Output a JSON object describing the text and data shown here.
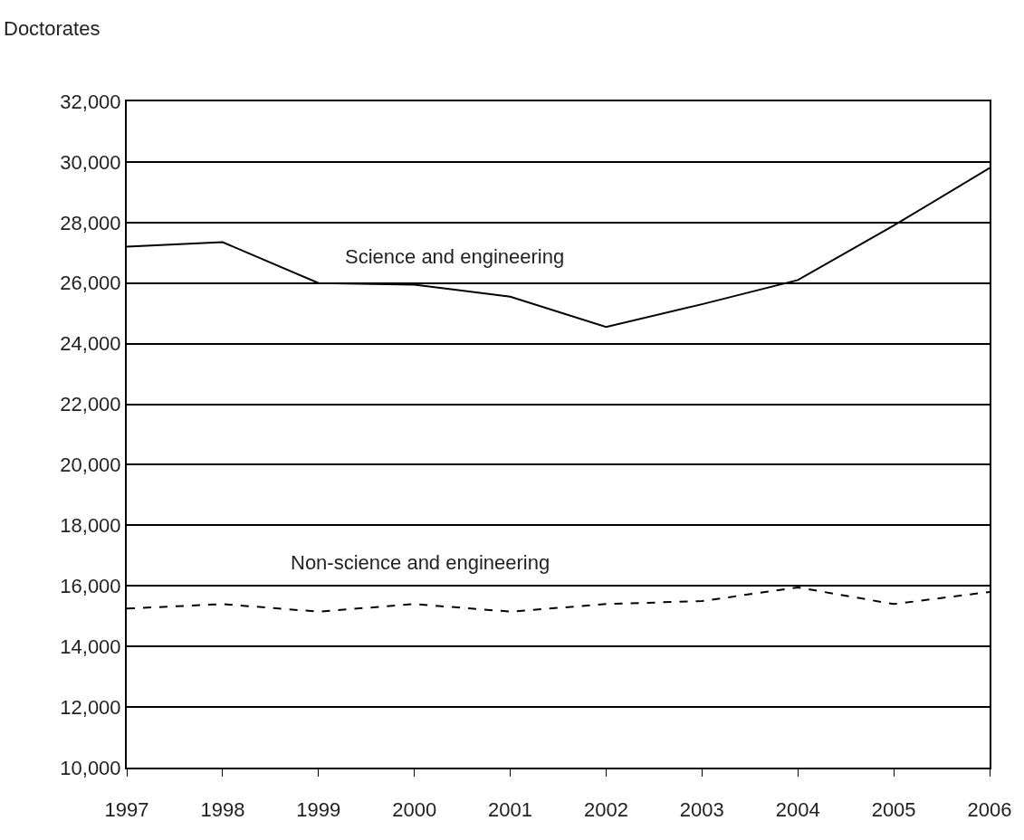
{
  "chart_data": {
    "type": "line",
    "ylabel": "Doctorates",
    "x": [
      1997,
      1998,
      1999,
      2000,
      2001,
      2002,
      2003,
      2004,
      2005,
      2006
    ],
    "series": [
      {
        "name": "Science and engineering",
        "color": "#000000",
        "line_style": "solid",
        "values": [
          27200,
          27350,
          26000,
          25950,
          25550,
          24550,
          25300,
          26100,
          27900,
          29800
        ]
      },
      {
        "name": "Non-science and engineering",
        "color": "#000000",
        "line_style": "dashed",
        "values": [
          15250,
          15400,
          15150,
          15400,
          15150,
          15400,
          15500,
          15950,
          15400,
          15800
        ]
      }
    ],
    "xlim": [
      1997,
      2006
    ],
    "xticks": [
      1997,
      1998,
      1999,
      2000,
      2001,
      2002,
      2003,
      2004,
      2005,
      2006
    ],
    "ylim": [
      10000,
      32000
    ],
    "yticks": [
      {
        "value": 10000,
        "label": "10,000"
      },
      {
        "value": 12000,
        "label": "12,000"
      },
      {
        "value": 14000,
        "label": "14,000"
      },
      {
        "value": 16000,
        "label": "16,000"
      },
      {
        "value": 18000,
        "label": "18,000"
      },
      {
        "value": 20000,
        "label": "20,000"
      },
      {
        "value": 22000,
        "label": "22,000"
      },
      {
        "value": 24000,
        "label": "24,000"
      },
      {
        "value": 26000,
        "label": "26,000"
      },
      {
        "value": 28000,
        "label": "28,000"
      },
      {
        "value": 30000,
        "label": "30,000"
      },
      {
        "value": 32000,
        "label": "32,000"
      }
    ],
    "grid": "y",
    "legend": false,
    "marker": "none"
  }
}
